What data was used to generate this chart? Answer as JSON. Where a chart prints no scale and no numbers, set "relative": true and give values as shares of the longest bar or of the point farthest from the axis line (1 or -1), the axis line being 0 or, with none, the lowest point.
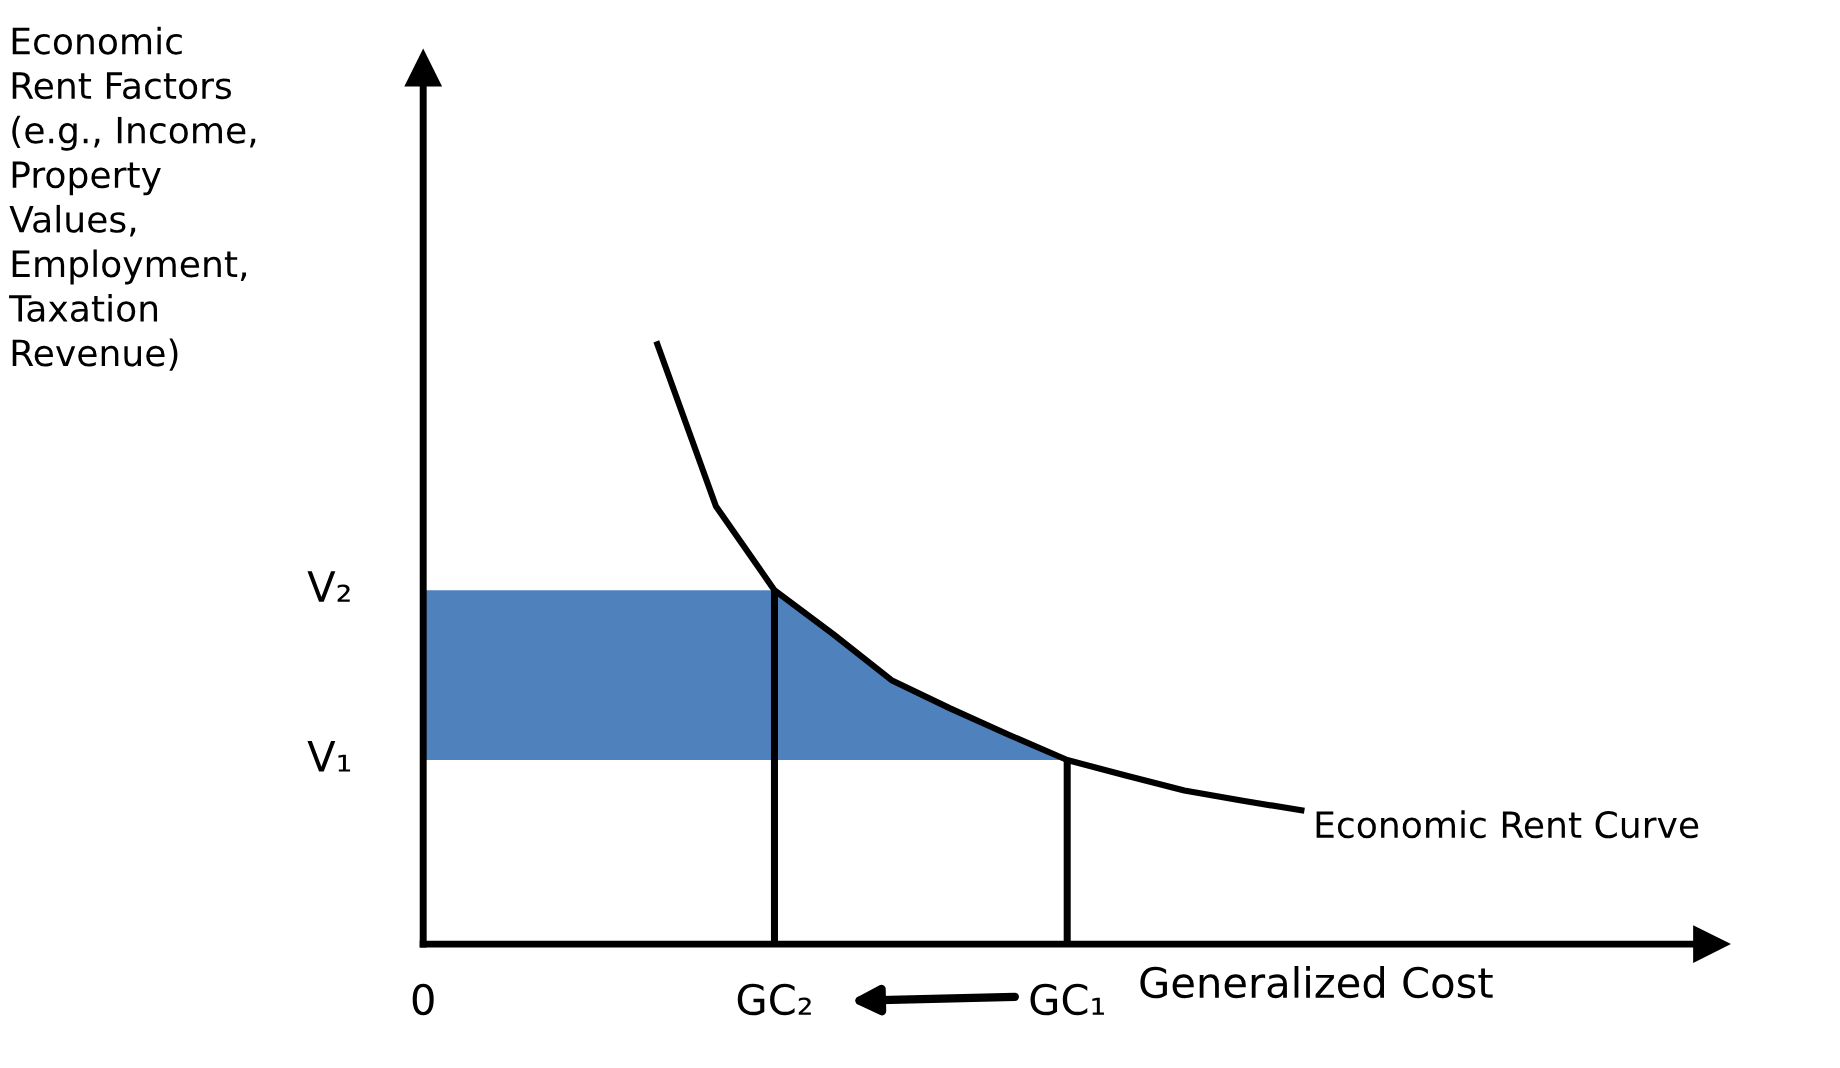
{
  "chart_data": {
    "type": "line",
    "relative": true,
    "xlabel": "Generalized Cost",
    "ylabel": "Economic\nRent Factors\n(e.g., Income,\nProperty\nValues,\nEmployment,\nTaxation\nRevenue)",
    "categories": [
      "0",
      null,
      null,
      null,
      null,
      null,
      "GC₂",
      null,
      null,
      null,
      null,
      "GC₁",
      null,
      null,
      null,
      null,
      null,
      null,
      null,
      null,
      null,
      null,
      null
    ],
    "annotations": [
      "V₂",
      "V₁"
    ],
    "grid": false,
    "legend": false,
    "marker": "none",
    "line_style": "solid",
    "series": [
      {
        "type": "area",
        "color": "#4f81bd",
        "values": [
          0.59,
          0.59,
          0.59,
          0.59,
          0.59,
          0.59,
          0.59,
          0.517,
          0.44,
          0.393,
          0.349,
          0.307,
          null,
          null,
          null,
          null,
          null,
          null,
          null,
          null,
          null,
          null,
          null
        ]
      },
      {
        "name": "Economic Rent Curve",
        "color": "#000000",
        "values": [
          null,
          null,
          null,
          null,
          1.0,
          0.73,
          0.59,
          0.517,
          0.44,
          0.393,
          0.349,
          0.307,
          0.281,
          0.256,
          0.239,
          0.223,
          null,
          null,
          null,
          null,
          null,
          null,
          null
        ]
      },
      {
        "type": "bar",
        "color": "#000000",
        "values": [
          null,
          null,
          null,
          null,
          null,
          null,
          0.59,
          null,
          null,
          null,
          null,
          0.307,
          null,
          null,
          null,
          null,
          null,
          null,
          null,
          null,
          null,
          null,
          null
        ]
      }
    ]
  }
}
